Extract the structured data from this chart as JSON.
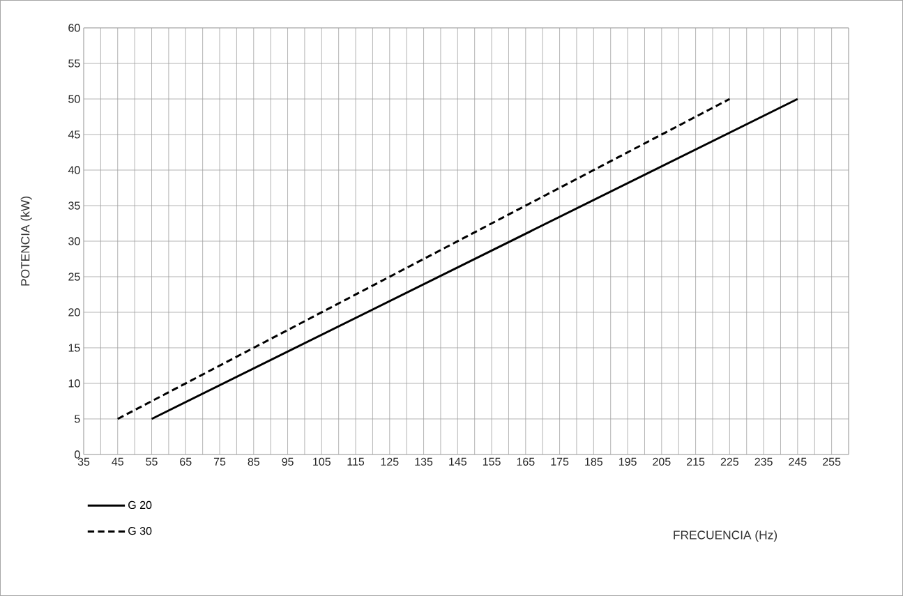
{
  "chart_data": {
    "type": "line",
    "annotations": [
      "FRECUENCIA (Hz)"
    ],
    "ylabel": "POTENCIA (kW)",
    "series": [
      {
        "name": "G 20",
        "color": "#000000",
        "line_style": "solid",
        "x": [
          55,
          245
        ],
        "values": [
          5,
          50
        ]
      },
      {
        "name": "G 30",
        "color": "#000000",
        "line_style": "dashed",
        "x": [
          45,
          225
        ],
        "values": [
          5,
          50
        ]
      }
    ],
    "xlim": [
      35,
      260
    ],
    "ylim": [
      0,
      60
    ],
    "xticks": [
      35,
      {
        "value": 40,
        "label": null
      },
      45,
      {
        "value": 50,
        "label": null
      },
      55,
      {
        "value": 60,
        "label": null
      },
      65,
      {
        "value": 70,
        "label": null
      },
      75,
      {
        "value": 80,
        "label": null
      },
      85,
      {
        "value": 90,
        "label": null
      },
      95,
      {
        "value": 100,
        "label": null
      },
      105,
      {
        "value": 110,
        "label": null
      },
      115,
      {
        "value": 120,
        "label": null
      },
      125,
      {
        "value": 130,
        "label": null
      },
      135,
      {
        "value": 140,
        "label": null
      },
      145,
      {
        "value": 150,
        "label": null
      },
      155,
      {
        "value": 160,
        "label": null
      },
      165,
      {
        "value": 170,
        "label": null
      },
      175,
      {
        "value": 180,
        "label": null
      },
      185,
      {
        "value": 190,
        "label": null
      },
      195,
      {
        "value": 200,
        "label": null
      },
      205,
      {
        "value": 210,
        "label": null
      },
      215,
      {
        "value": 220,
        "label": null
      },
      225,
      {
        "value": 230,
        "label": null
      },
      235,
      {
        "value": 240,
        "label": null
      },
      245,
      {
        "value": 250,
        "label": null
      },
      255,
      {
        "value": 260,
        "label": null
      }
    ],
    "yticks": [
      0,
      5,
      10,
      15,
      20,
      25,
      30,
      35,
      40,
      45,
      50,
      55,
      60
    ],
    "grid": true,
    "legend": "bottom left"
  }
}
